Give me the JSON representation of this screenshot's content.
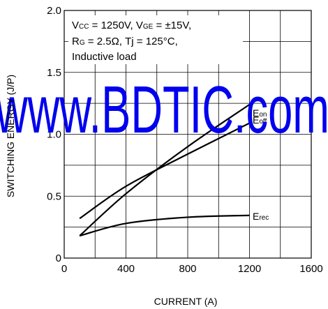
{
  "chart_data": {
    "type": "line",
    "xlabel": "CURRENT (A)",
    "ylabel": "SWITCHING ENERGY (J/P)",
    "xlim": [
      0,
      1600
    ],
    "ylim": [
      0,
      2.0
    ],
    "x_ticks": [
      "0",
      "400",
      "800",
      "1200",
      "1600"
    ],
    "y_ticks": [
      "0",
      "0.5",
      "1.0",
      "1.5",
      "2.0"
    ],
    "grid": true,
    "conditions": {
      "line1_pre": "V",
      "line1_sub1": "CC",
      "line1_mid": " = 1250V, V",
      "line1_sub2": "GE",
      "line1_post": " = ±15V,",
      "line2_pre": "R",
      "line2_sub": "G",
      "line2_post": " = 2.5Ω, Tj = 125°C,",
      "line3": "Inductive load"
    },
    "series": [
      {
        "name": "Eon",
        "label_main": "E",
        "label_sub": "on",
        "x": [
          100,
          400,
          800,
          1200
        ],
        "y": [
          0.18,
          0.52,
          0.9,
          1.24
        ]
      },
      {
        "name": "Eoff",
        "label_main": "E",
        "label_sub": "off",
        "x": [
          100,
          400,
          800,
          1200
        ],
        "y": [
          0.32,
          0.58,
          0.84,
          1.09
        ]
      },
      {
        "name": "Erec",
        "label_main": "E",
        "label_sub": "rec",
        "x": [
          100,
          400,
          800,
          1200
        ],
        "y": [
          0.18,
          0.28,
          0.33,
          0.345
        ]
      }
    ]
  },
  "watermark": "www.BDTIC.com"
}
